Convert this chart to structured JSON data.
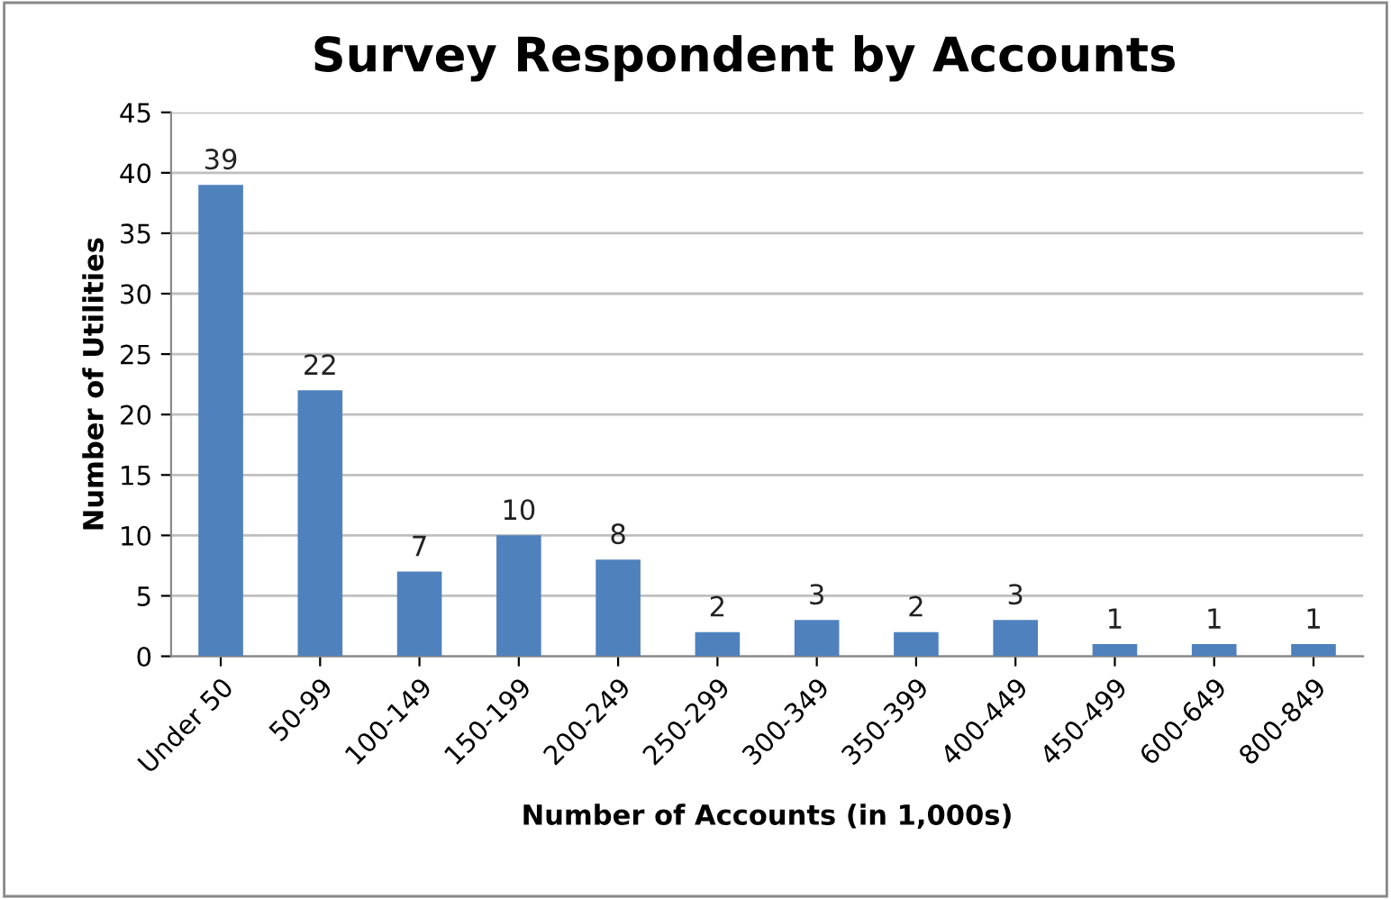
{
  "chart_data": {
    "type": "bar",
    "title": "Survey Respondent by Accounts",
    "xlabel": "Number of Accounts (in 1,000s)",
    "ylabel": "Number of Utilities",
    "categories": [
      "Under 50",
      "50-99",
      "100-149",
      "150-199",
      "200-249",
      "250-299",
      "300-349",
      "350-399",
      "400-449",
      "450-499",
      "600-649",
      "800-849"
    ],
    "values": [
      39,
      22,
      7,
      10,
      8,
      2,
      3,
      2,
      3,
      1,
      1,
      1
    ],
    "color": "#4f81bd",
    "ylim": [
      0,
      45
    ],
    "yticks": [
      0,
      5,
      10,
      15,
      20,
      25,
      30,
      35,
      40,
      45
    ],
    "grid": "y",
    "data_labels": true,
    "legend": false
  }
}
